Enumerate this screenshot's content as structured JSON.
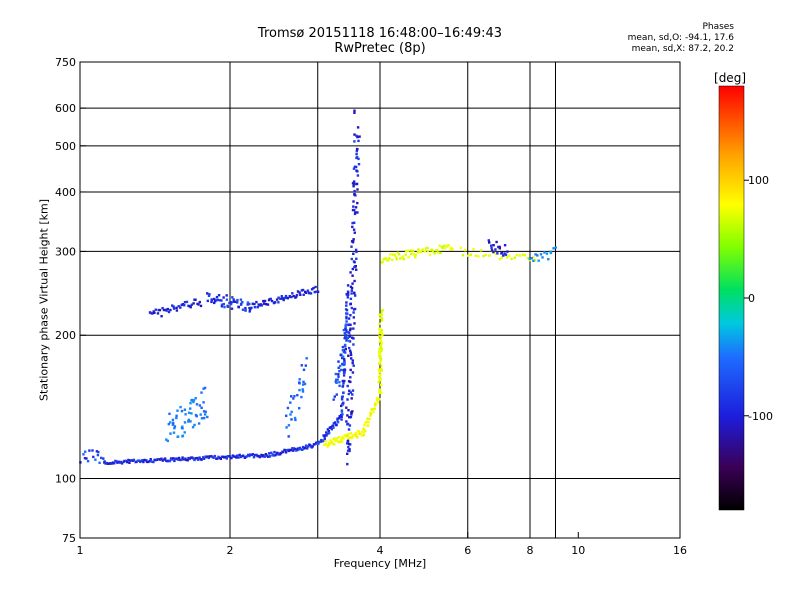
{
  "header": {
    "title_line1": "Tromsø 20151118 16:48:00–16:49:43",
    "title_line2": "RwPretec (8p)",
    "stats_heading": "Phases",
    "stats_o": "mean, sd,O: -94.1, 17.6",
    "stats_x": "mean, sd,X:  87.2, 20.2"
  },
  "colorbar": {
    "unit": "deg",
    "ticks": [
      {
        "label": "100",
        "value": 100
      },
      {
        "label": "0",
        "value": 0
      },
      {
        "label": "-100",
        "value": -100
      }
    ],
    "range": [
      -180,
      180
    ]
  },
  "chart_data": {
    "type": "scatter",
    "title": "Tromsø 20151118 16:48:00–16:49:43",
    "subtitle": "RwPretec (8p)",
    "xlabel": "Frequency [MHz]",
    "ylabel": "Stationary phase Virtual Height [km]",
    "x_scale": "log",
    "y_scale": "log",
    "xlim": [
      1,
      16
    ],
    "ylim": [
      75,
      750
    ],
    "x_ticks": [
      {
        "value": 1,
        "label": "1"
      },
      {
        "value": 2,
        "label": "2"
      },
      {
        "value": 4,
        "label": "4"
      },
      {
        "value": 6,
        "label": "6"
      },
      {
        "value": 8,
        "label": "8"
      },
      {
        "value": 10,
        "label": "10"
      },
      {
        "value": 16,
        "label": "16"
      }
    ],
    "x_grid": [
      2,
      3,
      4,
      6,
      8,
      9
    ],
    "y_ticks": [
      {
        "value": 75,
        "label": "75"
      },
      {
        "value": 100,
        "label": "100"
      },
      {
        "value": 200,
        "label": "200"
      },
      {
        "value": 300,
        "label": "300"
      },
      {
        "value": 400,
        "label": "400"
      },
      {
        "value": 500,
        "label": "500"
      },
      {
        "value": 600,
        "label": "600"
      },
      {
        "value": 750,
        "label": "750"
      }
    ],
    "grid": true,
    "color_encoding": "phase (deg)",
    "traces": [
      {
        "f_start": 1.0,
        "f_end": 1.12,
        "h_start": 112,
        "h_end": 110,
        "phase": -95,
        "n": 18,
        "spread": 0.035
      },
      {
        "f_start": 1.12,
        "f_end": 2.4,
        "h_start": 108,
        "h_end": 112,
        "phase": -105,
        "n": 140,
        "spread": 0.008
      },
      {
        "f_start": 2.4,
        "f_end": 3.0,
        "h_start": 112,
        "h_end": 118,
        "phase": -105,
        "n": 50,
        "spread": 0.01
      },
      {
        "f_start": 3.0,
        "f_end": 3.35,
        "h_start": 118,
        "h_end": 135,
        "phase": -100,
        "n": 40,
        "spread": 0.015
      },
      {
        "f_start": 3.35,
        "f_end": 3.45,
        "h_start": 135,
        "h_end": 250,
        "phase": -100,
        "n": 60,
        "spread": 0.03
      },
      {
        "f_start": 3.1,
        "f_end": 3.7,
        "h_start": 118,
        "h_end": 125,
        "phase": 95,
        "n": 50,
        "spread": 0.015
      },
      {
        "f_start": 3.7,
        "f_end": 4.0,
        "h_start": 125,
        "h_end": 150,
        "phase": 95,
        "n": 30,
        "spread": 0.02
      },
      {
        "f_start": 4.0,
        "f_end": 4.02,
        "h_start": 150,
        "h_end": 225,
        "phase": 90,
        "n": 60,
        "spread": 0.05
      },
      {
        "f_start": 4.02,
        "f_end": 5.6,
        "h_start": 290,
        "h_end": 305,
        "phase": 85,
        "n": 60,
        "spread": 0.02
      },
      {
        "f_start": 5.8,
        "f_end": 8.2,
        "h_start": 300,
        "h_end": 290,
        "phase": 90,
        "n": 30,
        "spread": 0.02
      },
      {
        "f_start": 6.6,
        "f_end": 7.2,
        "h_start": 310,
        "h_end": 300,
        "phase": -115,
        "n": 20,
        "spread": 0.03
      },
      {
        "f_start": 8.0,
        "f_end": 9.0,
        "h_start": 290,
        "h_end": 300,
        "phase": -60,
        "n": 15,
        "spread": 0.03
      },
      {
        "f_start": 1.38,
        "f_end": 1.75,
        "h_start": 220,
        "h_end": 235,
        "phase": -110,
        "n": 40,
        "spread": 0.02
      },
      {
        "f_start": 1.8,
        "f_end": 2.2,
        "h_start": 240,
        "h_end": 230,
        "phase": -100,
        "n": 50,
        "spread": 0.03
      },
      {
        "f_start": 2.2,
        "f_end": 3.0,
        "h_start": 230,
        "h_end": 250,
        "phase": -110,
        "n": 60,
        "spread": 0.015
      },
      {
        "f_start": 3.45,
        "f_end": 3.6,
        "h_start": 110,
        "h_end": 560,
        "phase": -110,
        "n": 150,
        "spread": 0.09
      },
      {
        "f_start": 3.25,
        "f_end": 3.45,
        "h_start": 150,
        "h_end": 210,
        "phase": -90,
        "n": 40,
        "spread": 0.06
      },
      {
        "f_start": 1.5,
        "f_end": 1.8,
        "h_start": 125,
        "h_end": 145,
        "phase": -70,
        "n": 60,
        "spread": 0.08
      },
      {
        "f_start": 2.6,
        "f_end": 2.85,
        "h_start": 130,
        "h_end": 170,
        "phase": -80,
        "n": 30,
        "spread": 0.08
      }
    ]
  }
}
